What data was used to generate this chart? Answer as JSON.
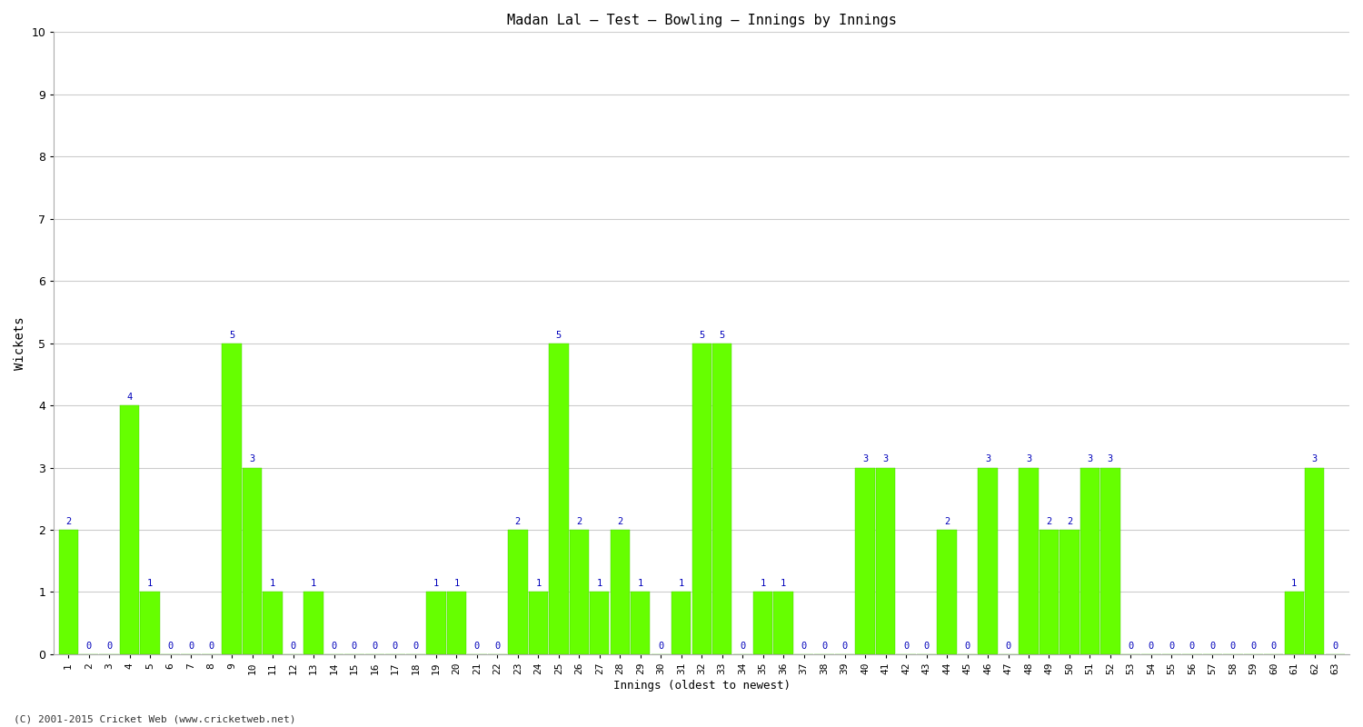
{
  "title": "Madan Lal – Test – Bowling – Innings by Innings",
  "xlabel": "Innings (oldest to newest)",
  "ylabel": "Wickets",
  "bar_color": "#66ff00",
  "bar_edge_color": "#44cc00",
  "label_color": "#0000bb",
  "background_color": "#ffffff",
  "ylim": [
    0,
    10
  ],
  "yticks": [
    0,
    1,
    2,
    3,
    4,
    5,
    6,
    7,
    8,
    9,
    10
  ],
  "footer": "(C) 2001-2015 Cricket Web (www.cricketweb.net)",
  "innings_labels": [
    "1",
    "2",
    "3",
    "4",
    "5",
    "6",
    "7",
    "8",
    "9",
    "10",
    "11",
    "12",
    "13",
    "14",
    "15",
    "16",
    "17",
    "18",
    "19",
    "20",
    "21",
    "22",
    "23",
    "24",
    "25",
    "26",
    "27",
    "28",
    "29",
    "30",
    "31",
    "32",
    "33",
    "34",
    "35",
    "36",
    "37",
    "38",
    "39",
    "40",
    "41",
    "42",
    "43",
    "44",
    "45",
    "46",
    "47",
    "48",
    "49",
    "50",
    "51",
    "52",
    "53",
    "54",
    "55",
    "56",
    "57",
    "58",
    "59",
    "60",
    "61",
    "62",
    "63"
  ],
  "wickets": [
    2,
    0,
    0,
    4,
    1,
    0,
    0,
    0,
    5,
    3,
    1,
    0,
    1,
    0,
    0,
    0,
    0,
    0,
    1,
    1,
    0,
    0,
    2,
    1,
    5,
    2,
    1,
    2,
    1,
    0,
    1,
    5,
    5,
    0,
    1,
    1,
    0,
    0,
    0,
    3,
    3,
    0,
    0,
    2,
    0,
    3,
    0,
    3,
    2,
    2,
    3,
    3,
    0,
    0,
    0,
    0,
    0,
    0,
    0,
    0,
    1,
    3,
    0
  ]
}
